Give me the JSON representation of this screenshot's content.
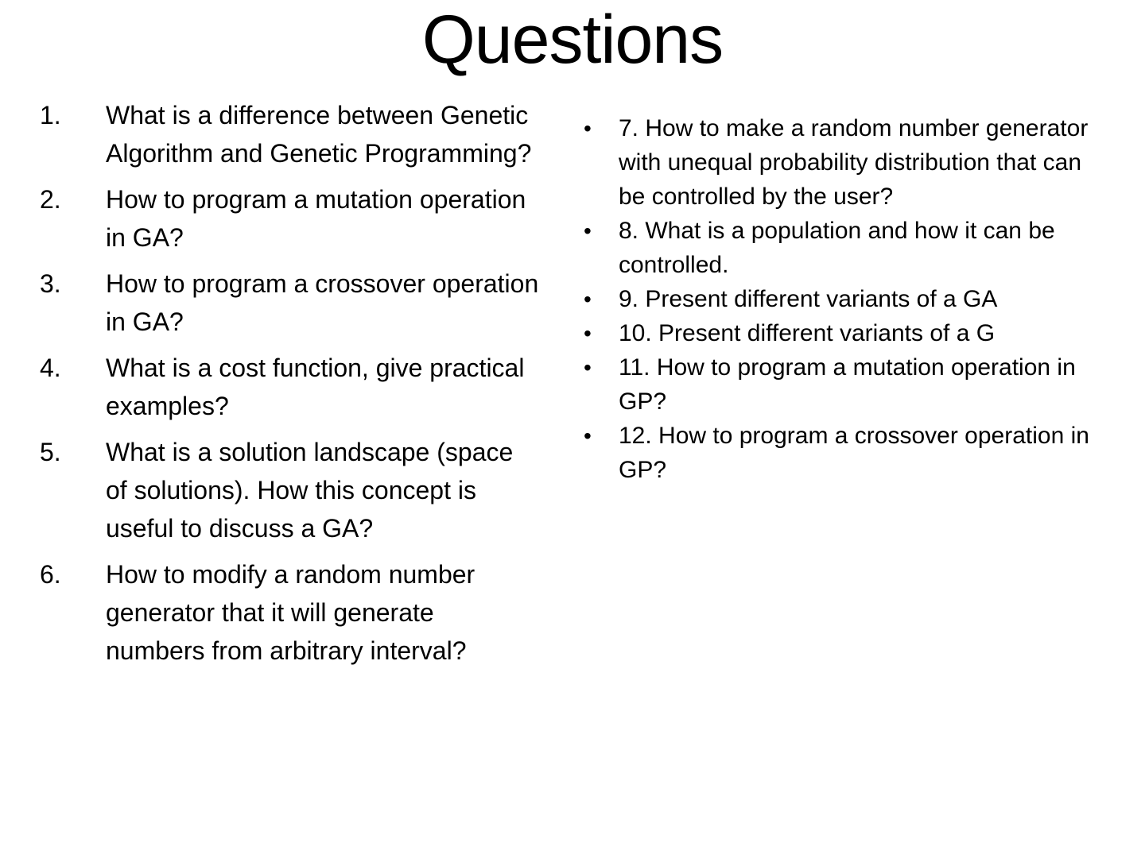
{
  "slide": {
    "title": "Questions",
    "bullet_char": "•",
    "colors": {
      "background": "#ffffff",
      "text": "#000000"
    },
    "left_items": [
      {
        "number": "1.",
        "text": "What is a difference between Genetic Algorithm and Genetic Programming?"
      },
      {
        "number": "2.",
        "text": "How to program a mutation operation in GA?"
      },
      {
        "number": "3.",
        "text": "How to program a crossover operation in GA?"
      },
      {
        "number": "4.",
        "text": "What is a cost function, give practical examples?"
      },
      {
        "number": "5.",
        "text": "What is a solution landscape (space of solutions). How this concept is useful to discuss a GA?"
      },
      {
        "number": "6.",
        "text": "How to modify a random number generator that it will generate numbers from arbitrary interval?"
      }
    ],
    "right_items": [
      {
        "text": "7. How to make a random number generator with unequal probability distribution that can be controlled by the user?"
      },
      {
        "text": "8. What is a population and how it can be controlled."
      },
      {
        "text": "9. Present different variants of a GA"
      },
      {
        "text": "10. Present different variants of a G"
      },
      {
        "text": "11. How to program a mutation operation in GP?"
      },
      {
        "text": "12. How to program a crossover operation in GP?"
      }
    ]
  }
}
